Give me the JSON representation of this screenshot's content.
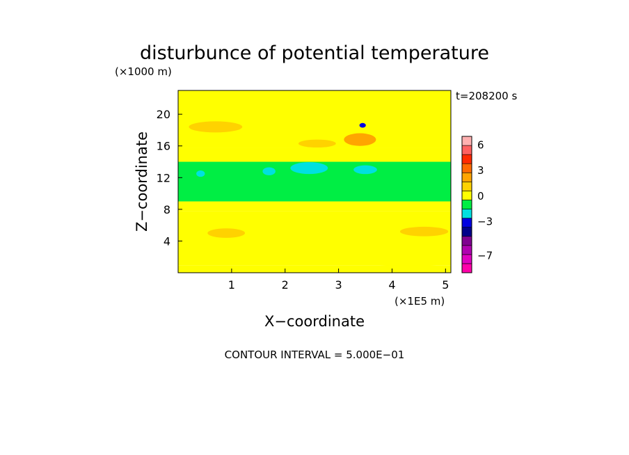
{
  "chart_data": {
    "type": "heatmap",
    "title": "disturbunce of potential temperature",
    "time_label": "t=208200 s",
    "xlabel": "X−coordinate",
    "ylabel": "Z−coordinate",
    "x_unit": "(×1E5 m)",
    "y_unit": "(×1000 m)",
    "footer": "CONTOUR INTERVAL = 5.000E−01",
    "xlim": [
      0,
      5.1
    ],
    "ylim": [
      0,
      23
    ],
    "x_ticks": [
      1,
      2,
      3,
      4,
      5
    ],
    "x_tick_labels": [
      "1",
      "2",
      "3",
      "4",
      "5"
    ],
    "y_ticks": [
      4,
      8,
      12,
      16,
      20
    ],
    "y_tick_labels": [
      "4",
      "8",
      "12",
      "16",
      "20"
    ],
    "grid": false,
    "colorbar": {
      "min": -9,
      "max": 7,
      "colors": [
        "#ff00aa",
        "#e000c0",
        "#b000b0",
        "#800090",
        "#00008a",
        "#0000e0",
        "#00e0e0",
        "#00ee44",
        "#ffff00",
        "#ffd200",
        "#ffa500",
        "#ff6a00",
        "#ff2a00",
        "#ff6060",
        "#ffb0b0"
      ],
      "ticks": [
        6,
        3,
        0,
        -3,
        -7
      ],
      "tick_labels": [
        "6",
        "3",
        "0",
        "−3",
        "−7"
      ]
    },
    "bands": [
      {
        "z": [
          0,
          0.9
        ],
        "value": 0.25
      },
      {
        "z": [
          0.9,
          7.8
        ],
        "value": 0.25
      },
      {
        "z": [
          7.8,
          9.0
        ],
        "value": -0.25
      },
      {
        "z": [
          9.0,
          14.0
        ],
        "value": -0.75
      },
      {
        "z": [
          14.0,
          15.8
        ],
        "value": -0.25
      },
      {
        "z": [
          15.8,
          23
        ],
        "value": 0.25
      }
    ],
    "features": [
      {
        "x": 1.7,
        "z": 12.8,
        "rx": 0.12,
        "rz": 0.5,
        "value": -2.5
      },
      {
        "x": 2.45,
        "z": 13.2,
        "rx": 0.35,
        "rz": 0.75,
        "value": -2.5
      },
      {
        "x": 3.5,
        "z": 13.0,
        "rx": 0.22,
        "rz": 0.55,
        "value": -2.5
      },
      {
        "x": 0.42,
        "z": 12.5,
        "rx": 0.08,
        "rz": 0.4,
        "value": -2.5
      },
      {
        "x": 0.7,
        "z": 18.4,
        "rx": 0.5,
        "rz": 0.7,
        "value": 1.25
      },
      {
        "x": 3.4,
        "z": 16.8,
        "rx": 0.3,
        "rz": 0.8,
        "value": 2.25
      },
      {
        "x": 3.45,
        "z": 18.6,
        "rx": 0.06,
        "rz": 0.3,
        "value": -2.75
      },
      {
        "x": 2.6,
        "z": 16.3,
        "rx": 0.35,
        "rz": 0.5,
        "value": 1.25
      },
      {
        "x": 0.9,
        "z": 5.0,
        "rx": 0.35,
        "rz": 0.6,
        "value": 1.25
      },
      {
        "x": 4.6,
        "z": 5.2,
        "rx": 0.45,
        "rz": 0.6,
        "value": 1.25
      },
      {
        "x": 4.3,
        "z": 1.3,
        "rx": 0.8,
        "rz": 0.5,
        "value": -0.25
      },
      {
        "x": 2.0,
        "z": 1.5,
        "rx": 1.0,
        "rz": 0.5,
        "value": -0.25
      }
    ]
  }
}
